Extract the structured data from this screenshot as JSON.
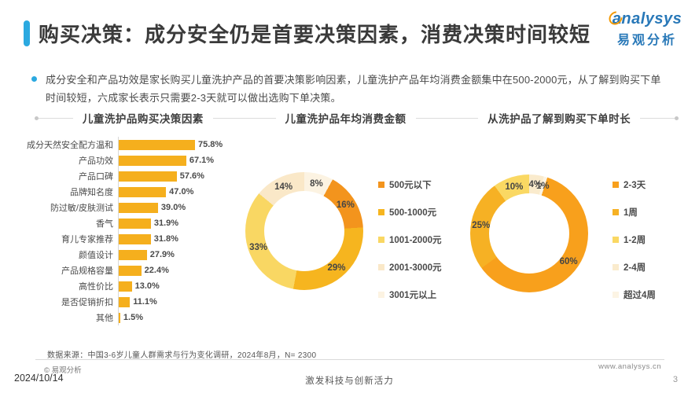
{
  "header": {
    "title": "购买决策：成分安全仍是首要决策因素，消费决策时间较短",
    "logo": {
      "brand_en": "analysys",
      "brand_cn": "易观分析"
    }
  },
  "summary": "成分安全和产品功效是家长购买儿童洗护产品的首要决策影响因素，儿童洗护产品年均消费金额集中在500-2000元，从了解到购买下单时间较短，六成家长表示只需要2-3天就可以做出选购下单决策。",
  "colors": {
    "accent_blue": "#2BA9E0",
    "brand_blue": "#2878B8",
    "brand_orange": "#F39800",
    "bar_gold": "#F5AF1D"
  },
  "chart_data": [
    {
      "type": "bar",
      "title": "儿童洗护品购买决策因素",
      "unit": "%",
      "orientation": "horizontal",
      "categories": [
        "成分天然安全配方温和",
        "产品功效",
        "产品口碑",
        "品牌知名度",
        "防过敏/皮肤测试",
        "香气",
        "育儿专家推荐",
        "颜值设计",
        "产品规格容量",
        "高性价比",
        "是否促销折扣",
        "其他"
      ],
      "values": [
        75.8,
        67.1,
        57.6,
        47.0,
        39.0,
        31.9,
        31.8,
        27.9,
        22.4,
        13.0,
        11.1,
        1.5
      ],
      "bar_color": "#F5AF1D"
    },
    {
      "type": "pie",
      "subtype": "donut",
      "title": "儿童洗护品年均消费金额",
      "unit": "%",
      "legend_position": "right",
      "slices": [
        {
          "label": "500元以下",
          "value": 16,
          "color": "#F3941D"
        },
        {
          "label": "500-1000元",
          "value": 29,
          "color": "#F6B51F"
        },
        {
          "label": "1001-2000元",
          "value": 33,
          "color": "#F9D763"
        },
        {
          "label": "2001-3000元",
          "value": 14,
          "color": "#FAE8C8"
        },
        {
          "label": "3001元以上",
          "value": 8,
          "color": "#FCF3E2"
        }
      ],
      "draw_order_clockwise_from_top": [
        4,
        0,
        1,
        2,
        3
      ]
    },
    {
      "type": "pie",
      "subtype": "donut",
      "title": "从洗护品了解到购买下单时长",
      "unit": "%",
      "legend_position": "right",
      "slices": [
        {
          "label": "2-3天",
          "value": 60,
          "color": "#F8A01C"
        },
        {
          "label": "1周",
          "value": 25,
          "color": "#F6B124"
        },
        {
          "label": "1-2周",
          "value": 10,
          "color": "#FAD863"
        },
        {
          "label": "2-4周",
          "value": 4,
          "color": "#FAEBCD"
        },
        {
          "label": "超过4周",
          "value": 1,
          "color": "#FCF4E4"
        }
      ],
      "draw_order_clockwise_from_top": [
        3,
        4,
        0,
        1,
        2
      ]
    }
  ],
  "footer": {
    "source": "数据来源：中国3-6岁儿童人群需求与行为变化调研，2024年8月，N= 2300",
    "copyright": "© 易观分析",
    "website": "www.analysys.cn",
    "date": "2024/10/14",
    "slogan": "激发科技与创新活力",
    "page": "3"
  }
}
